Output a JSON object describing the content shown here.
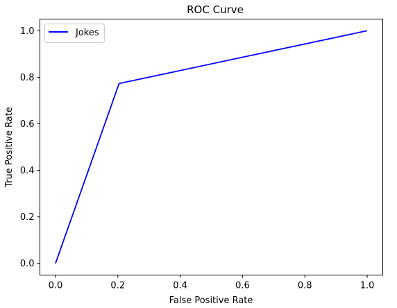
{
  "chart_data": {
    "type": "line",
    "title": "ROC Curve",
    "xlabel": "False Positive Rate",
    "ylabel": "True Positive Rate",
    "xlim": [
      -0.05,
      1.05
    ],
    "ylim": [
      -0.05,
      1.05
    ],
    "xticks": [
      "0.0",
      "0.2",
      "0.4",
      "0.6",
      "0.8",
      "1.0"
    ],
    "yticks": [
      "0.0",
      "0.2",
      "0.4",
      "0.6",
      "0.8",
      "1.0"
    ],
    "grid": false,
    "legend_position": "upper-left",
    "series": [
      {
        "name": "Jokes",
        "color": "#0000ff",
        "x": [
          0.0,
          0.204,
          1.0
        ],
        "y": [
          0.0,
          0.773,
          1.0
        ]
      }
    ]
  }
}
